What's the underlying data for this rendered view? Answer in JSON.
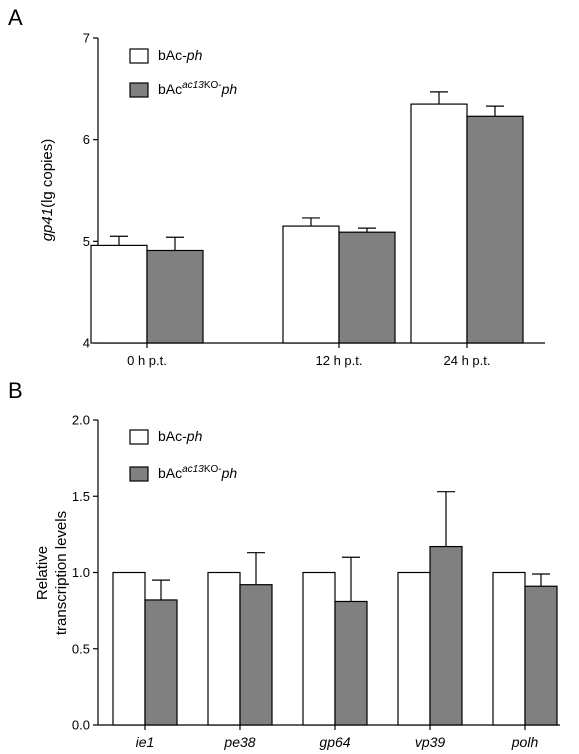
{
  "panels": [
    {
      "letter": "A"
    },
    {
      "letter": "B"
    }
  ],
  "chart_data": [
    {
      "type": "bar",
      "ylabel_italic": "gp41",
      "ylabel_rest": "(lg copies)",
      "ylim": [
        4,
        7
      ],
      "yticks": [
        "4",
        "5",
        "6",
        "7"
      ],
      "categories": [
        "0 h p.t.",
        "12 h p.t.",
        "24 h p.t."
      ],
      "category_style": "normal",
      "legend_position": "top-left",
      "series": [
        {
          "legend_prefix": "bAc-",
          "legend_superscript": "",
          "legend_suffix": "",
          "legend_italic": "ph",
          "color": "#ffffff",
          "values": [
            4.96,
            5.15,
            6.35
          ],
          "errors": [
            0.09,
            0.08,
            0.12
          ]
        },
        {
          "legend_prefix": "bAc",
          "legend_superscript": "ac13",
          "legend_suffix": "KO-",
          "legend_italic": "ph",
          "color": "#808080",
          "values": [
            4.91,
            5.09,
            6.23
          ],
          "errors": [
            0.13,
            0.04,
            0.1
          ]
        }
      ]
    },
    {
      "type": "bar",
      "ylabel_line1": "Relative",
      "ylabel_line2": "transcription levels",
      "ylim": [
        0,
        2
      ],
      "yticks": [
        "0.0",
        "0.5",
        "1.0",
        "1.5",
        "2.0"
      ],
      "categories": [
        "ie1",
        "pe38",
        "gp64",
        "vp39",
        "polh"
      ],
      "category_style": "italic",
      "legend_position": "top-left",
      "series": [
        {
          "legend_prefix": "bAc-",
          "legend_superscript": "",
          "legend_suffix": "",
          "legend_italic": "ph",
          "color": "#ffffff",
          "values": [
            1.0,
            1.0,
            1.0,
            1.0,
            1.0
          ],
          "errors": [
            0,
            0,
            0,
            0,
            0
          ]
        },
        {
          "legend_prefix": "bAc",
          "legend_superscript": "ac13",
          "legend_suffix": "KO-",
          "legend_italic": "ph",
          "color": "#808080",
          "values": [
            0.82,
            0.92,
            0.81,
            1.17,
            0.91
          ],
          "errors": [
            0.13,
            0.21,
            0.29,
            0.36,
            0.08
          ]
        }
      ]
    }
  ]
}
